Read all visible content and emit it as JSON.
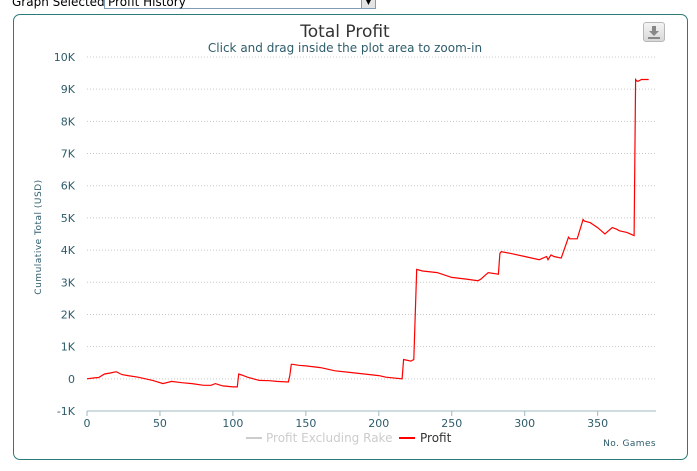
{
  "toolbar": {
    "graph_label": "Graph Selected:",
    "graph_value": "Profit History"
  },
  "export_icon": "download-icon",
  "colors": {
    "profit": "#ff0000",
    "profit_excluding_rake": "#cccccc",
    "axis_text": "#2e5c6b",
    "title_text": "#333333",
    "grid": "#c8c8c8",
    "frame": "#2b7a78"
  },
  "chart_data": {
    "type": "line",
    "title": "Total Profit",
    "subtitle": "Click and drag inside the plot area to zoom-in",
    "xlabel": "No. Games",
    "ylabel": "Cumulative Total (USD)",
    "xlim": [
      0,
      390
    ],
    "ylim": [
      -1000,
      10000
    ],
    "x_ticks": [
      0,
      50,
      100,
      150,
      200,
      250,
      300,
      350
    ],
    "y_ticks": [
      -1000,
      0,
      1000,
      2000,
      3000,
      4000,
      5000,
      6000,
      7000,
      8000,
      9000,
      10000
    ],
    "y_tick_labels": [
      "-1K",
      "0",
      "1K",
      "2K",
      "3K",
      "4K",
      "5K",
      "6K",
      "7K",
      "8K",
      "9K",
      "10K"
    ],
    "grid": "horizontal dotted",
    "legend_position": "bottom-center",
    "series": [
      {
        "name": "Profit Excluding Rake",
        "visible": false,
        "values": []
      },
      {
        "name": "Profit",
        "visible": true,
        "x": [
          0,
          5,
          8,
          12,
          16,
          20,
          24,
          28,
          35,
          45,
          52,
          58,
          65,
          72,
          80,
          85,
          88,
          90,
          93,
          100,
          103,
          104,
          106,
          110,
          118,
          125,
          130,
          138,
          139,
          140,
          141,
          145,
          150,
          160,
          165,
          170,
          180,
          190,
          200,
          205,
          216,
          217,
          222,
          224,
          226,
          230,
          240,
          250,
          260,
          268,
          270,
          275,
          282,
          283,
          284,
          290,
          300,
          310,
          315,
          316,
          318,
          320,
          325,
          330,
          331,
          336,
          340,
          341,
          345,
          350,
          355,
          360,
          363,
          365,
          370,
          375,
          376,
          377,
          378,
          380,
          385
        ],
        "y": [
          0,
          30,
          40,
          150,
          180,
          220,
          130,
          100,
          50,
          -50,
          -150,
          -80,
          -120,
          -150,
          -200,
          -200,
          -150,
          -180,
          -220,
          -250,
          -250,
          150,
          120,
          50,
          -50,
          -60,
          -80,
          -100,
          100,
          450,
          450,
          420,
          400,
          350,
          300,
          250,
          200,
          150,
          100,
          50,
          0,
          600,
          550,
          600,
          3400,
          3350,
          3300,
          3150,
          3100,
          3050,
          3100,
          3300,
          3250,
          3900,
          3950,
          3900,
          3800,
          3700,
          3800,
          3700,
          3850,
          3800,
          3750,
          4400,
          4350,
          4350,
          4950,
          4900,
          4850,
          4700,
          4500,
          4700,
          4650,
          4600,
          4550,
          4450,
          9300,
          9250,
          9250,
          9300,
          9300
        ]
      }
    ]
  }
}
